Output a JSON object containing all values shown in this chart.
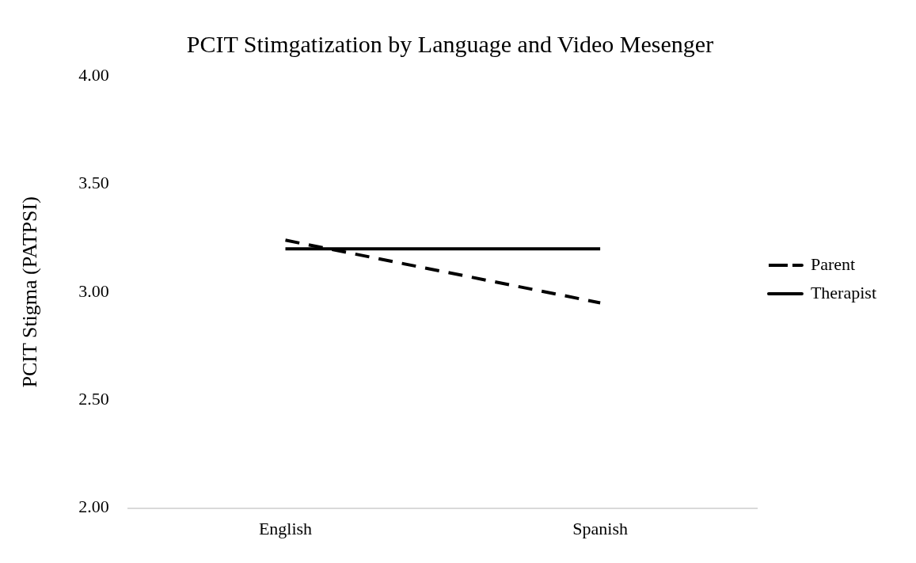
{
  "chart_data": {
    "type": "line",
    "title": "PCIT Stimgatization by Language and Video Mesenger",
    "ylabel": "PCIT Stigma (PATPSI)",
    "categories": [
      "English",
      "Spanish"
    ],
    "series": [
      {
        "name": "Parent",
        "color": "#000000",
        "values": [
          3.24,
          2.95
        ],
        "line_style": "dashed"
      },
      {
        "name": "Therapist",
        "color": "#000000",
        "values": [
          3.2,
          3.2
        ],
        "line_style": "solid"
      }
    ],
    "ylim": [
      2,
      4
    ],
    "yticks": [
      {
        "value": 2,
        "label": "2.00"
      },
      {
        "value": 2.5,
        "label": "2.50"
      },
      {
        "value": 3,
        "label": "3.00"
      },
      {
        "value": 3.5,
        "label": "3.50"
      },
      {
        "value": 4,
        "label": "4.00"
      }
    ],
    "grid": false,
    "legend": "right",
    "marker": "none"
  }
}
